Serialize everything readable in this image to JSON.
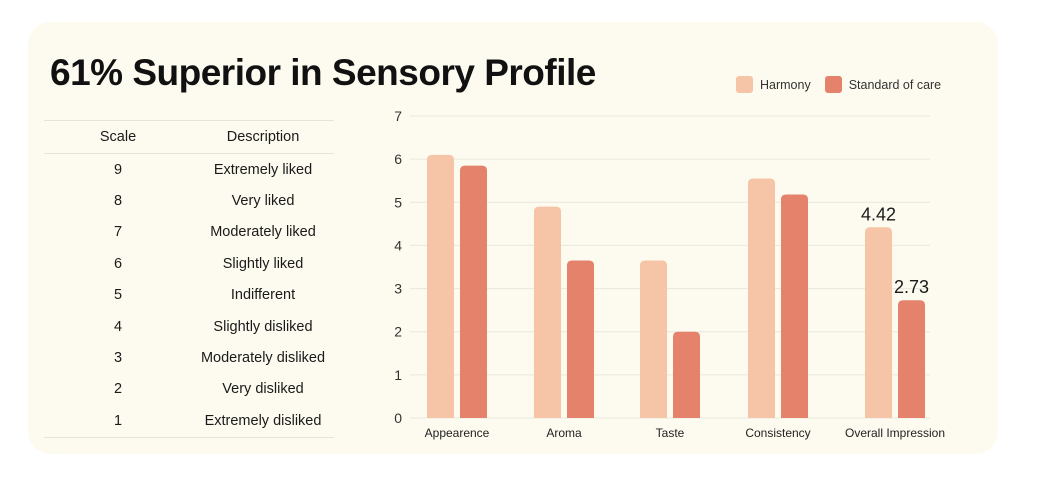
{
  "title": "61% Superior in Sensory Profile",
  "scale_table": {
    "headers": [
      "Scale",
      "Description"
    ],
    "rows": [
      {
        "scale": "9",
        "description": "Extremely liked"
      },
      {
        "scale": "8",
        "description": "Very liked"
      },
      {
        "scale": "7",
        "description": "Moderately liked"
      },
      {
        "scale": "6",
        "description": "Slightly liked"
      },
      {
        "scale": "5",
        "description": "Indifferent"
      },
      {
        "scale": "4",
        "description": "Slightly disliked"
      },
      {
        "scale": "3",
        "description": "Moderately disliked"
      },
      {
        "scale": "2",
        "description": "Very disliked"
      },
      {
        "scale": "1",
        "description": "Extremely disliked"
      }
    ]
  },
  "colors": {
    "harmony": "#f6c4a6",
    "standard": "#e4826c",
    "card_bg": "#fdfbef",
    "grid": "#e8e8dc"
  },
  "chart_data": {
    "type": "bar",
    "title": "61% Superior in Sensory Profile",
    "categories": [
      "Appearence",
      "Aroma",
      "Taste",
      "Consistency",
      "Overall Impression"
    ],
    "series": [
      {
        "name": "Harmony",
        "values": [
          6.1,
          4.9,
          3.65,
          5.55,
          4.42
        ]
      },
      {
        "name": "Standard of care",
        "values": [
          5.85,
          3.65,
          2.0,
          5.18,
          2.73
        ]
      }
    ],
    "data_labels": [
      {
        "category": "Overall Impression",
        "series": "Harmony",
        "text": "4.42"
      },
      {
        "category": "Overall Impression",
        "series": "Standard of care",
        "text": "2.73"
      }
    ],
    "yticks": [
      "0",
      "1",
      "2",
      "3",
      "4",
      "5",
      "6",
      "7"
    ],
    "ylim": [
      0,
      7
    ],
    "xlabel": "",
    "ylabel": "",
    "grid": true,
    "legend": "top-right"
  }
}
